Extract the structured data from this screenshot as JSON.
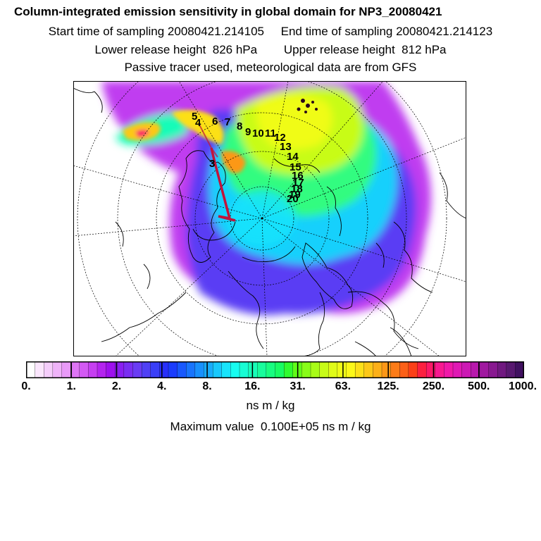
{
  "header": {
    "title": "Column-integrated emission sensitivity in global domain for NP3_20080421",
    "sampling": "Start time of sampling 20080421.214105     End time of sampling 20080421.214123",
    "release": "Lower release height  826 hPa        Upper release height  812 hPa",
    "tracer": "Passive tracer used, meteorological data are from GFS"
  },
  "map": {
    "projection": "north-polar-stereographic",
    "track_color": "#c0143c",
    "trajectory_labels": [
      "3",
      "5",
      "4",
      "6",
      "7",
      "8",
      "9",
      "10",
      "11",
      "12",
      "13",
      "14",
      "15",
      "16",
      "17",
      "18",
      "19",
      "20"
    ]
  },
  "colorbar": {
    "colors": [
      "#ffffff",
      "#fbe6fd",
      "#f5cdfb",
      "#efb3f9",
      "#e99af8",
      "#de75f5",
      "#d35af3",
      "#c63ff1",
      "#b424ef",
      "#9e10ee",
      "#8a1ff2",
      "#7a2ef2",
      "#6a3cf4",
      "#5040f5",
      "#3a3ff7",
      "#2830fa",
      "#1a3cfd",
      "#1858fd",
      "#1874fd",
      "#1890fd",
      "#18acfc",
      "#18c8fc",
      "#18e4fc",
      "#18fcf0",
      "#18fcd4",
      "#18fcb8",
      "#18fc9c",
      "#18fc80",
      "#18fc64",
      "#30fc30",
      "#60fc18",
      "#88fc18",
      "#a8fc18",
      "#c8fc18",
      "#e0fc18",
      "#f0fc18",
      "#fcf818",
      "#fce018",
      "#fcc818",
      "#fcb018",
      "#fc9818",
      "#fc7c18",
      "#fc6018",
      "#fc4018",
      "#fc2040",
      "#fc1868",
      "#f81890",
      "#f018a8",
      "#e018b4",
      "#cc18b4",
      "#b818ac",
      "#a018a0",
      "#881890",
      "#701880",
      "#581870",
      "#401060"
    ],
    "tick_labels": [
      "0.",
      "1.",
      "2.",
      "4.",
      "8.",
      "16.",
      "31.",
      "63.",
      "125.",
      "250.",
      "500.",
      "1000."
    ]
  },
  "units": "ns m / kg",
  "max_value": "Maximum value  0.100E+05 ns m / kg"
}
